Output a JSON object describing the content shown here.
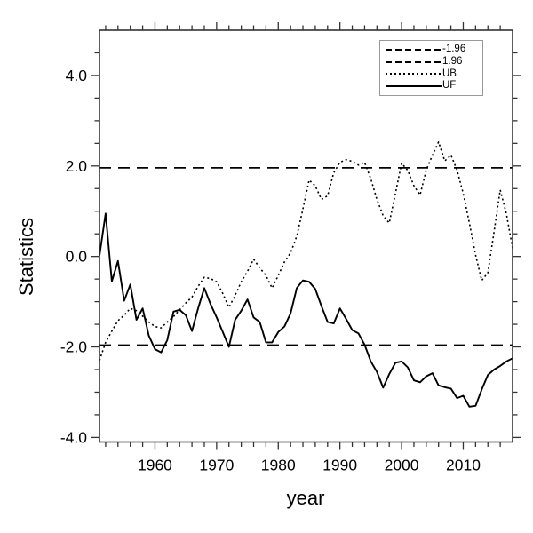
{
  "chart_data": {
    "type": "line",
    "title": "",
    "xlabel": "year",
    "ylabel": "Statistics",
    "xlim": [
      1951,
      2018
    ],
    "ylim": [
      -4.1,
      5.0
    ],
    "grid": "off",
    "background": "#ffffff",
    "line_color": "#000000",
    "x_axis": {
      "label": "year",
      "tick_values": [
        1960,
        1970,
        1980,
        1990,
        2000,
        2010
      ],
      "tick_labels": [
        "1960",
        "1970",
        "1980",
        "1990",
        "2000",
        "2010"
      ],
      "minor_step": 2
    },
    "y_axis": {
      "label": "Statistics",
      "tick_values": [
        4,
        2,
        0,
        -2,
        -4
      ],
      "tick_labels": [
        "4.0",
        "2.0",
        "0.0",
        "-2.0",
        "-4.0"
      ],
      "minor_step": 0.5
    },
    "reference_lines": [
      {
        "label": "-1.96",
        "value": -1.96,
        "style": "long-dash"
      },
      {
        "label": "1.96",
        "value": 1.96,
        "style": "long-dash"
      }
    ],
    "legend": {
      "position": "top-right",
      "entries": [
        {
          "label": "-1.96",
          "style": "long-dash"
        },
        {
          "label": "1.96",
          "style": "long-dash"
        },
        {
          "label": "UB",
          "style": "dotted"
        },
        {
          "label": "UF",
          "style": "solid"
        }
      ]
    },
    "x": [
      1951,
      1952,
      1953,
      1954,
      1955,
      1956,
      1957,
      1958,
      1959,
      1960,
      1961,
      1962,
      1963,
      1964,
      1965,
      1966,
      1967,
      1968,
      1969,
      1970,
      1971,
      1972,
      1973,
      1974,
      1975,
      1976,
      1977,
      1978,
      1979,
      1980,
      1981,
      1982,
      1983,
      1984,
      1985,
      1986,
      1987,
      1988,
      1989,
      1990,
      1991,
      1992,
      1993,
      1994,
      1995,
      1996,
      1997,
      1998,
      1999,
      2000,
      2001,
      2002,
      2003,
      2004,
      2005,
      2006,
      2007,
      2008,
      2009,
      2010,
      2011,
      2012,
      2013,
      2014,
      2015,
      2016,
      2017,
      2018
    ],
    "series": [
      {
        "name": "UB",
        "style": "dotted",
        "values": [
          -2.3,
          -1.9,
          -1.65,
          -1.42,
          -1.3,
          -1.15,
          -1.2,
          -1.32,
          -1.45,
          -1.55,
          -1.58,
          -1.45,
          -1.33,
          -1.18,
          -1.03,
          -0.9,
          -0.66,
          -0.46,
          -0.49,
          -0.56,
          -0.82,
          -1.13,
          -0.86,
          -0.56,
          -0.33,
          -0.06,
          -0.25,
          -0.42,
          -0.7,
          -0.42,
          -0.12,
          0.08,
          0.45,
          1.05,
          1.69,
          1.56,
          1.26,
          1.34,
          1.85,
          2.08,
          2.14,
          2.1,
          2.02,
          2.08,
          1.72,
          1.26,
          0.9,
          0.74,
          1.39,
          2.06,
          1.9,
          1.56,
          1.36,
          1.91,
          2.24,
          2.53,
          2.11,
          2.24,
          1.91,
          1.39,
          0.74,
          0.03,
          -0.53,
          -0.36,
          0.55,
          1.47,
          0.94,
          0.18
        ]
      },
      {
        "name": "UF",
        "style": "solid",
        "values": [
          0.02,
          0.95,
          -0.55,
          -0.1,
          -0.98,
          -0.62,
          -1.4,
          -1.15,
          -1.75,
          -2.05,
          -2.12,
          -1.85,
          -1.22,
          -1.18,
          -1.3,
          -1.65,
          -1.15,
          -0.7,
          -1.05,
          -1.35,
          -1.67,
          -2.0,
          -1.4,
          -1.2,
          -0.95,
          -1.35,
          -1.45,
          -1.9,
          -1.9,
          -1.67,
          -1.55,
          -1.26,
          -0.7,
          -0.53,
          -0.56,
          -0.72,
          -1.1,
          -1.45,
          -1.48,
          -1.15,
          -1.38,
          -1.63,
          -1.7,
          -1.95,
          -2.32,
          -2.55,
          -2.9,
          -2.6,
          -2.35,
          -2.32,
          -2.45,
          -2.74,
          -2.78,
          -2.65,
          -2.58,
          -2.85,
          -2.89,
          -2.92,
          -3.13,
          -3.08,
          -3.32,
          -3.3,
          -2.94,
          -2.62,
          -2.5,
          -2.42,
          -2.32,
          -2.25
        ]
      }
    ]
  }
}
